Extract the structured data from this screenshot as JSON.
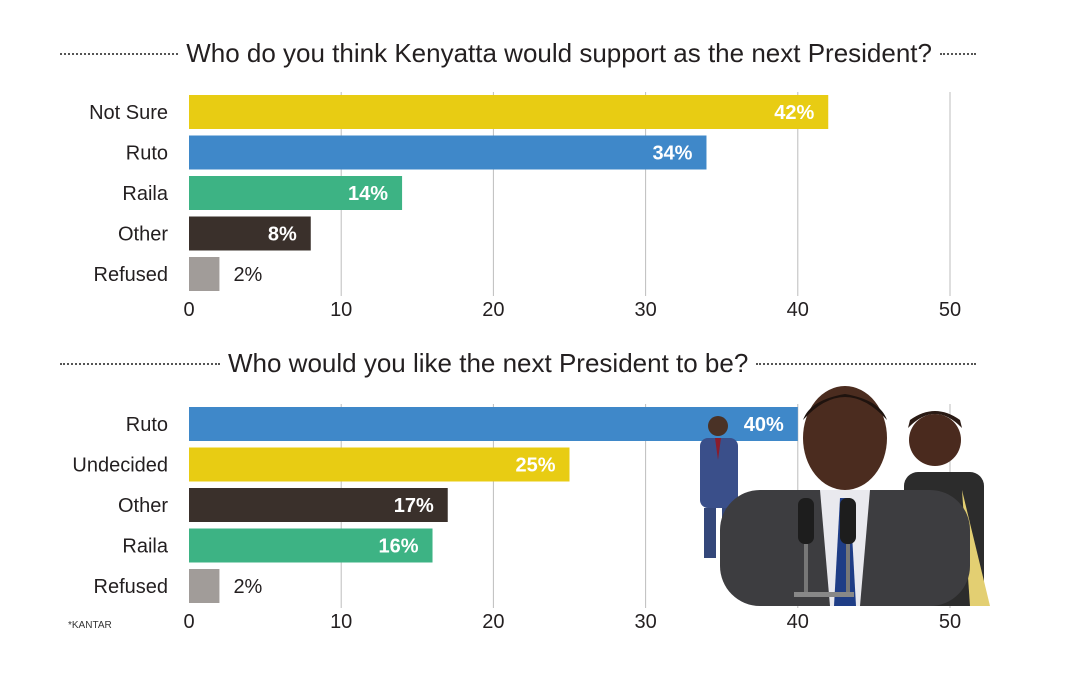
{
  "chart_data": [
    {
      "type": "bar",
      "orientation": "horizontal",
      "title": "Who do you think Kenyatta would support as the next President?",
      "categories": [
        "Not Sure",
        "Ruto",
        "Raila",
        "Other",
        "Refused"
      ],
      "values": [
        42,
        34,
        14,
        8,
        2
      ],
      "value_labels": [
        "42%",
        "34%",
        "14%",
        "8%",
        "2%"
      ],
      "colors": [
        "#e8cc13",
        "#3f88c9",
        "#3db384",
        "#3a302b",
        "#a19c99"
      ],
      "xlim": [
        0,
        50
      ],
      "xticks": [
        "0",
        "10",
        "20",
        "30",
        "40",
        "50"
      ],
      "grid": true
    },
    {
      "type": "bar",
      "orientation": "horizontal",
      "title": "Who would you like the next President to be?",
      "categories": [
        "Ruto",
        "Undecided",
        "Other",
        "Raila",
        "Refused"
      ],
      "values": [
        40,
        25,
        17,
        16,
        2
      ],
      "value_labels": [
        "40%",
        "25%",
        "17%",
        "16%",
        "2%"
      ],
      "colors": [
        "#3f88c9",
        "#e8cc13",
        "#3a302b",
        "#3db384",
        "#a19c99"
      ],
      "xlim": [
        0,
        50
      ],
      "xticks": [
        "0",
        "10",
        "20",
        "30",
        "40",
        "50"
      ],
      "grid": true
    }
  ],
  "source": "*KANTAR"
}
